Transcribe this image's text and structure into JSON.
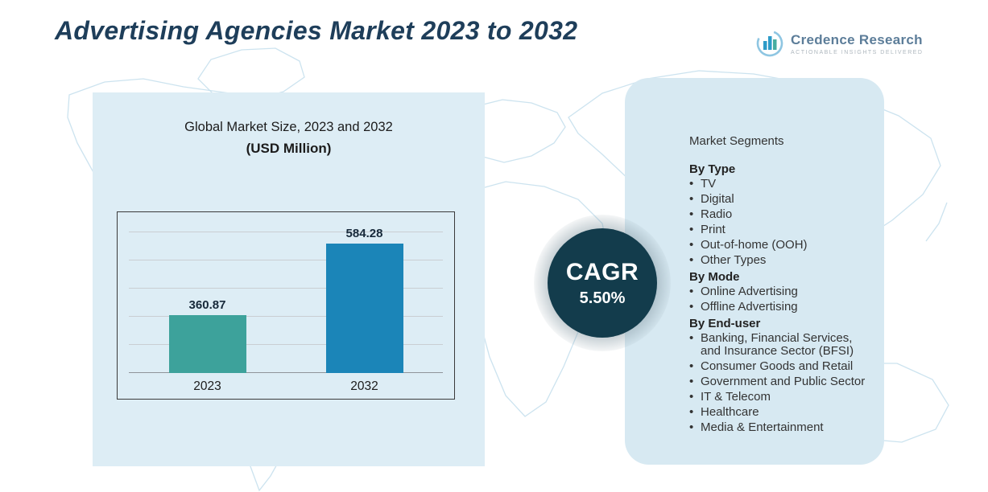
{
  "header": {
    "title": "Advertising Agencies Market 2023 to 2032",
    "logo": {
      "brand": "Credence Research",
      "tagline": "ACTIONABLE INSIGHTS DELIVERED"
    }
  },
  "chart_panel": {
    "title_line1": "Global Market Size, 2023 and 2032",
    "title_line2": "(USD Million)"
  },
  "chart_data": {
    "type": "bar",
    "title": "Global Market Size, 2023 and 2032 (USD Million)",
    "categories": [
      "2023",
      "2032"
    ],
    "values": [
      360.87,
      584.28
    ],
    "value_labels": [
      "360.87",
      "584.28"
    ],
    "xlabel": "",
    "ylabel": "",
    "ylim": [
      180,
      620
    ],
    "grid": true,
    "legend": "none",
    "bar_colors": [
      "#3da29b",
      "#1b85b8"
    ]
  },
  "cagr": {
    "label": "CAGR",
    "value": "5.50%"
  },
  "segments": {
    "title": "Market Segments",
    "groups": [
      {
        "heading": "By Type",
        "items": [
          "TV",
          "Digital",
          "Radio",
          "Print",
          "Out-of-home (OOH)",
          "Other Types"
        ]
      },
      {
        "heading": "By Mode",
        "items": [
          "Online Advertising",
          "Offline Advertising"
        ]
      },
      {
        "heading": "By End-user",
        "items": [
          "Banking, Financial Services, and Insurance Sector (BFSI)",
          "Consumer Goods and Retail",
          "Government and Public Sector",
          "IT & Telecom",
          "Healthcare",
          "Media & Entertainment"
        ]
      }
    ]
  },
  "colors": {
    "title_text": "#1e3e5a",
    "panel_bg_left": "#ddedf5",
    "panel_bg_right": "#d7e9f2",
    "bar_2023": "#3da29b",
    "bar_2032": "#1b85b8",
    "cagr_bg": "#133c4c",
    "map_line": "#c6e0ed"
  }
}
